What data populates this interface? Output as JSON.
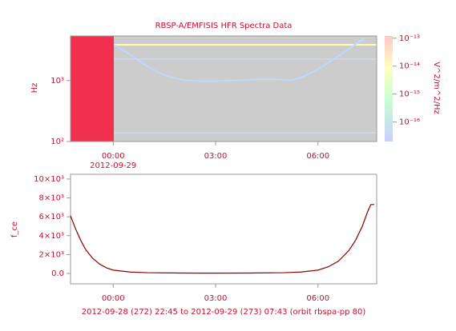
{
  "chart_data": [
    {
      "type": "spectrogram",
      "title": "RBSP-A/EMFISIS HFR Spectra Data",
      "ylabel": "Hz",
      "log_y": true,
      "ylim": [
        100,
        5400
      ],
      "yticks": [
        {
          "value": 1000,
          "label": "10³"
        },
        {
          "value": 100,
          "label": "10²"
        }
      ],
      "xlim": [
        -1.25,
        7.72
      ],
      "xticks": [
        {
          "value": 0,
          "label": "00:00"
        },
        {
          "value": 3,
          "label": "03:00"
        },
        {
          "value": 6,
          "label": "06:00"
        }
      ],
      "xtick_date": "2012-09-29",
      "colorbar": {
        "label": "V^2/m^2/Hz",
        "log": true,
        "lim": [
          2e-17,
          1.2e-13
        ],
        "ticks": [
          {
            "value": 1e-13,
            "label": "10⁻¹³"
          },
          {
            "value": 1e-14,
            "label": "10⁻¹⁴"
          },
          {
            "value": 1e-15,
            "label": "10⁻¹⁵"
          },
          {
            "value": 1e-16,
            "label": "10⁻¹⁶"
          }
        ]
      }
    },
    {
      "type": "line",
      "ylabel": "f_ce",
      "xlim": [
        -1.25,
        7.72
      ],
      "xticks": [
        {
          "value": 0,
          "label": "00:00"
        },
        {
          "value": 3,
          "label": "03:00"
        },
        {
          "value": 6,
          "label": "06:00"
        }
      ],
      "ylim": [
        -1100,
        10500
      ],
      "yticks": [
        {
          "value": 0,
          "label": "0.0"
        },
        {
          "value": 2000,
          "label": "2×10³"
        },
        {
          "value": 4000,
          "label": "4×10³"
        },
        {
          "value": 6000,
          "label": "6×10³"
        },
        {
          "value": 8000,
          "label": "8×10³"
        },
        {
          "value": 10000,
          "label": "10×10³"
        }
      ],
      "xlabel": "2012-09-28 (272) 22:45 to 2012-09-29 (273) 07:43 (orbit rbspa-pp 80)",
      "x": [
        -1.25,
        -1.1,
        -0.95,
        -0.8,
        -0.6,
        -0.4,
        -0.2,
        0,
        0.5,
        1,
        2,
        3,
        4,
        5,
        5.5,
        6,
        6.3,
        6.6,
        6.9,
        7.1,
        7.3,
        7.45,
        7.55,
        7.65
      ],
      "series": [
        {
          "color": "#8b0000",
          "values": [
            6100,
            4700,
            3500,
            2500,
            1600,
            1000,
            600,
            350,
            150,
            80,
            40,
            30,
            40,
            80,
            150,
            350,
            700,
            1300,
            2400,
            3500,
            5000,
            6500,
            7300,
            7300
          ]
        }
      ]
    }
  ]
}
